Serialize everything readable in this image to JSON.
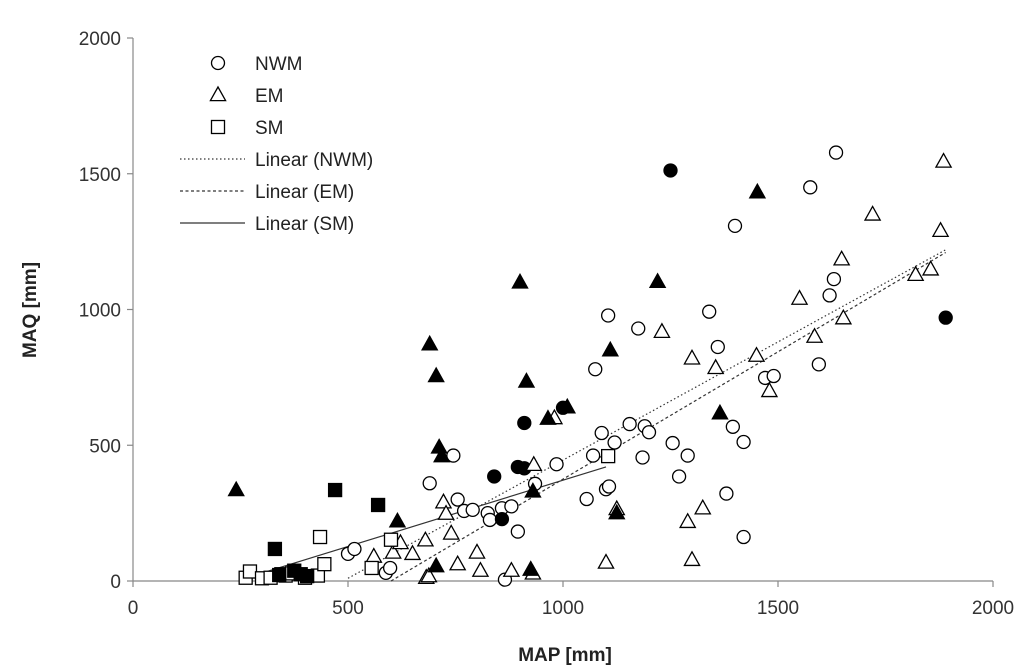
{
  "chart_data": {
    "type": "scatter",
    "xlabel": "MAP [mm]",
    "ylabel": "MAQ [mm]",
    "xlim": [
      0,
      2000
    ],
    "ylim": [
      0,
      2000
    ],
    "xticks": [
      "0",
      "500",
      "1000",
      "1500",
      "2000"
    ],
    "yticks": [
      "0",
      "500",
      "1000",
      "1500",
      "2000"
    ],
    "grid": false,
    "legend_position": "top-left",
    "legend": [
      "NWM",
      "EM",
      "SM",
      "Linear (NWM)",
      "Linear (EM)",
      "Linear (SM)"
    ],
    "series": [
      {
        "name": "NWM",
        "marker": "circle",
        "points": [
          [
            500,
            100
          ],
          [
            515,
            118
          ],
          [
            588,
            30
          ],
          [
            598,
            48
          ],
          [
            690,
            360
          ],
          [
            745,
            462
          ],
          [
            755,
            300
          ],
          [
            770,
            258
          ],
          [
            790,
            262
          ],
          [
            825,
            250
          ],
          [
            830,
            225
          ],
          [
            858,
            268
          ],
          [
            880,
            275
          ],
          [
            895,
            182
          ],
          [
            935,
            358
          ],
          [
            985,
            430
          ],
          [
            1055,
            302
          ],
          [
            1070,
            462
          ],
          [
            1075,
            780
          ],
          [
            1090,
            545
          ],
          [
            1100,
            338
          ],
          [
            1105,
            978
          ],
          [
            1107,
            348
          ],
          [
            1120,
            510
          ],
          [
            1155,
            578
          ],
          [
            1175,
            930
          ],
          [
            1185,
            455
          ],
          [
            1190,
            570
          ],
          [
            1200,
            548
          ],
          [
            1255,
            508
          ],
          [
            1270,
            385
          ],
          [
            1290,
            462
          ],
          [
            1340,
            992
          ],
          [
            1360,
            862
          ],
          [
            1380,
            322
          ],
          [
            1395,
            568
          ],
          [
            1400,
            1308
          ],
          [
            1420,
            162
          ],
          [
            1420,
            512
          ],
          [
            1470,
            748
          ],
          [
            1490,
            755
          ],
          [
            1575,
            1450
          ],
          [
            1595,
            798
          ],
          [
            1620,
            1052
          ],
          [
            1630,
            1112
          ],
          [
            1635,
            1578
          ],
          [
            865,
            5
          ]
        ]
      },
      {
        "name": "NWM filled",
        "marker": "circle-filled",
        "points": [
          [
            840,
            385
          ],
          [
            858,
            228
          ],
          [
            895,
            420
          ],
          [
            910,
            415
          ],
          [
            910,
            582
          ],
          [
            1000,
            638
          ],
          [
            1250,
            1512
          ],
          [
            1890,
            970
          ]
        ]
      },
      {
        "name": "EM",
        "marker": "triangle",
        "points": [
          [
            560,
            90
          ],
          [
            605,
            105
          ],
          [
            622,
            140
          ],
          [
            650,
            100
          ],
          [
            680,
            150
          ],
          [
            682,
            12
          ],
          [
            688,
            18
          ],
          [
            722,
            290
          ],
          [
            728,
            248
          ],
          [
            740,
            175
          ],
          [
            755,
            62
          ],
          [
            800,
            105
          ],
          [
            808,
            38
          ],
          [
            880,
            38
          ],
          [
            930,
            28
          ],
          [
            932,
            428
          ],
          [
            980,
            600
          ],
          [
            1100,
            68
          ],
          [
            1125,
            265
          ],
          [
            1230,
            918
          ],
          [
            1290,
            218
          ],
          [
            1300,
            78
          ],
          [
            1300,
            820
          ],
          [
            1325,
            268
          ],
          [
            1355,
            785
          ],
          [
            1450,
            830
          ],
          [
            1480,
            700
          ],
          [
            1550,
            1040
          ],
          [
            1585,
            900
          ],
          [
            1648,
            1185
          ],
          [
            1652,
            968
          ],
          [
            1720,
            1350
          ],
          [
            1820,
            1128
          ],
          [
            1855,
            1148
          ],
          [
            1878,
            1290
          ],
          [
            1885,
            1545
          ]
        ]
      },
      {
        "name": "EM filled",
        "marker": "triangle-filled",
        "points": [
          [
            240,
            335
          ],
          [
            615,
            220
          ],
          [
            690,
            872
          ],
          [
            705,
            755
          ],
          [
            712,
            492
          ],
          [
            718,
            460
          ],
          [
            705,
            55
          ],
          [
            900,
            1100
          ],
          [
            915,
            735
          ],
          [
            925,
            42
          ],
          [
            930,
            330
          ],
          [
            965,
            598
          ],
          [
            1010,
            640
          ],
          [
            1110,
            850
          ],
          [
            1125,
            250
          ],
          [
            1220,
            1102
          ],
          [
            1365,
            618
          ],
          [
            1452,
            1432
          ]
        ]
      },
      {
        "name": "SM",
        "marker": "square",
        "points": [
          [
            262,
            12
          ],
          [
            272,
            35
          ],
          [
            300,
            10
          ],
          [
            320,
            12
          ],
          [
            345,
            25
          ],
          [
            355,
            20
          ],
          [
            370,
            28
          ],
          [
            400,
            12
          ],
          [
            430,
            20
          ],
          [
            435,
            162
          ],
          [
            445,
            62
          ],
          [
            555,
            48
          ],
          [
            600,
            152
          ],
          [
            1105,
            460
          ]
        ]
      },
      {
        "name": "SM filled",
        "marker": "square-filled",
        "points": [
          [
            330,
            118
          ],
          [
            340,
            22
          ],
          [
            375,
            38
          ],
          [
            390,
            25
          ],
          [
            405,
            18
          ],
          [
            470,
            335
          ],
          [
            570,
            280
          ]
        ]
      }
    ],
    "trendlines": [
      {
        "name": "Linear (NWM)",
        "style": "dotted",
        "x": [
          500,
          1890
        ],
        "y": [
          10,
          1220
        ]
      },
      {
        "name": "Linear (EM)",
        "style": "dashed",
        "x": [
          600,
          1890
        ],
        "y": [
          0,
          1210
        ]
      },
      {
        "name": "Linear (SM)",
        "style": "solid",
        "x": [
          250,
          1100
        ],
        "y": [
          5,
          420
        ]
      }
    ]
  }
}
